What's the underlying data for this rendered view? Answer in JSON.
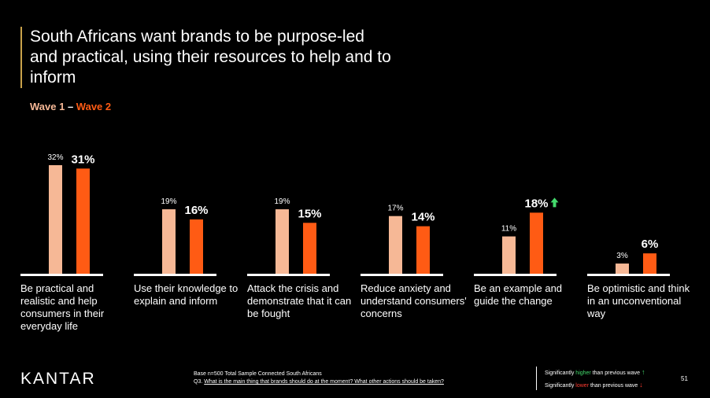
{
  "title": "South Africans want brands to be purpose-led and practical, using their resources to help and to inform",
  "legend": {
    "wave1": "Wave 1",
    "dash": " – ",
    "wave2": "Wave 2"
  },
  "colors": {
    "wave1": "#f6b896",
    "wave2": "#ff5b14",
    "background": "#000000",
    "sig_up": "#43d96b",
    "sig_down": "#ff3b30"
  },
  "chart_data": {
    "type": "bar",
    "categories": [
      "Be practical and realistic and help consumers in their everyday life",
      "Use their knowledge to explain and inform",
      "Attack the crisis and demonstrate that it can be fought",
      "Reduce anxiety and understand consumers' concerns",
      "Be an example and guide the change",
      "Be optimistic and think in an unconventional way"
    ],
    "series": [
      {
        "name": "Wave 1",
        "values": [
          32,
          19,
          19,
          17,
          11,
          3
        ],
        "labels": [
          "32%",
          "19%",
          "19%",
          "17%",
          "11%",
          "3%"
        ]
      },
      {
        "name": "Wave 2",
        "values": [
          31,
          16,
          15,
          14,
          18,
          6
        ],
        "labels": [
          "31%",
          "16%",
          "15%",
          "14%",
          "18%",
          "6%"
        ]
      }
    ],
    "significance": [
      "",
      "",
      "",
      "",
      "up",
      ""
    ],
    "ylim": [
      0,
      32
    ],
    "grid": false
  },
  "footer": {
    "logo": "KANTAR",
    "base_line1": "Base n=500 Total Sample Connected South Africans",
    "base_line2_prefix": "Q3. ",
    "base_line2_question": "What is the main thing that brands should do at the moment? What other actions should be taken?",
    "sig_higher_pre": "Significantly ",
    "sig_higher_word": "higher",
    "sig_higher_post": " than previous wave",
    "sig_lower_pre": "Significantly ",
    "sig_lower_word": "lower",
    "sig_lower_post": " than previous wave",
    "page_number": "51"
  }
}
